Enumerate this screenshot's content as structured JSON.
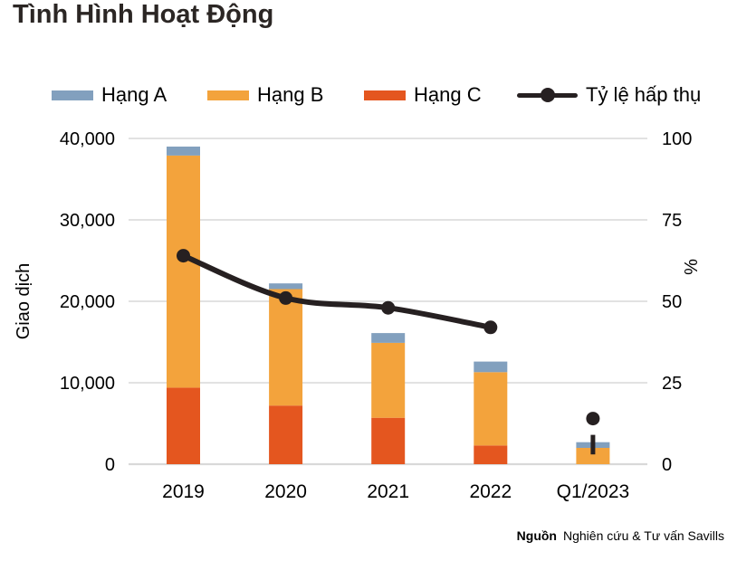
{
  "title": "Tình Hình Hoạt Động",
  "legend": [
    {
      "label": "Hạng A",
      "color": "#82a0be"
    },
    {
      "label": "Hạng B",
      "color": "#f3a33c"
    },
    {
      "label": "Hạng C",
      "color": "#e4561f"
    },
    {
      "label": "Tỷ lệ hấp thụ",
      "color": "#262021"
    }
  ],
  "chart_data": {
    "type": "bar",
    "subtype": "stacked-bar-with-line",
    "categories": [
      "2019",
      "2020",
      "2021",
      "2022",
      "Q1/2023"
    ],
    "series": [
      {
        "name": "Hạng C",
        "type": "bar",
        "stack_order": 1,
        "color": "#e4561f",
        "values": [
          9400,
          7200,
          5700,
          2300,
          0
        ]
      },
      {
        "name": "Hạng B",
        "type": "bar",
        "stack_order": 2,
        "color": "#f3a33c",
        "values": [
          28500,
          14300,
          9200,
          9000,
          2000
        ]
      },
      {
        "name": "Hạng A",
        "type": "bar",
        "stack_order": 3,
        "color": "#82a0be",
        "values": [
          1100,
          700,
          1200,
          1300,
          700
        ]
      },
      {
        "name": "Tỷ lệ hấp thụ",
        "type": "line",
        "axis": "right",
        "color": "#262021",
        "values": [
          64,
          51,
          48,
          42,
          14
        ],
        "line_break_before_last": true
      }
    ],
    "left_axis": {
      "label": "Giao dịch",
      "min": 0,
      "max": 40000,
      "ticks": [
        "0",
        "10,000",
        "20,000",
        "30,000",
        "40,000"
      ]
    },
    "right_axis": {
      "label": "%",
      "min": 0,
      "max": 100,
      "ticks": [
        "0",
        "25",
        "50",
        "75",
        "100"
      ]
    },
    "annotations": [
      {
        "type": "vertical-dash",
        "category": "Q1/2023",
        "axis": "right",
        "from": 3,
        "to": 9
      }
    ],
    "grid": true,
    "legend_position": "top"
  },
  "footer": {
    "source_label": "Nguồn",
    "source_text": "Nghiên cứu & Tư vấn Savills"
  },
  "colors": {
    "grid": "#d9d9d9",
    "text": "#000000",
    "title": "#2b2624"
  }
}
